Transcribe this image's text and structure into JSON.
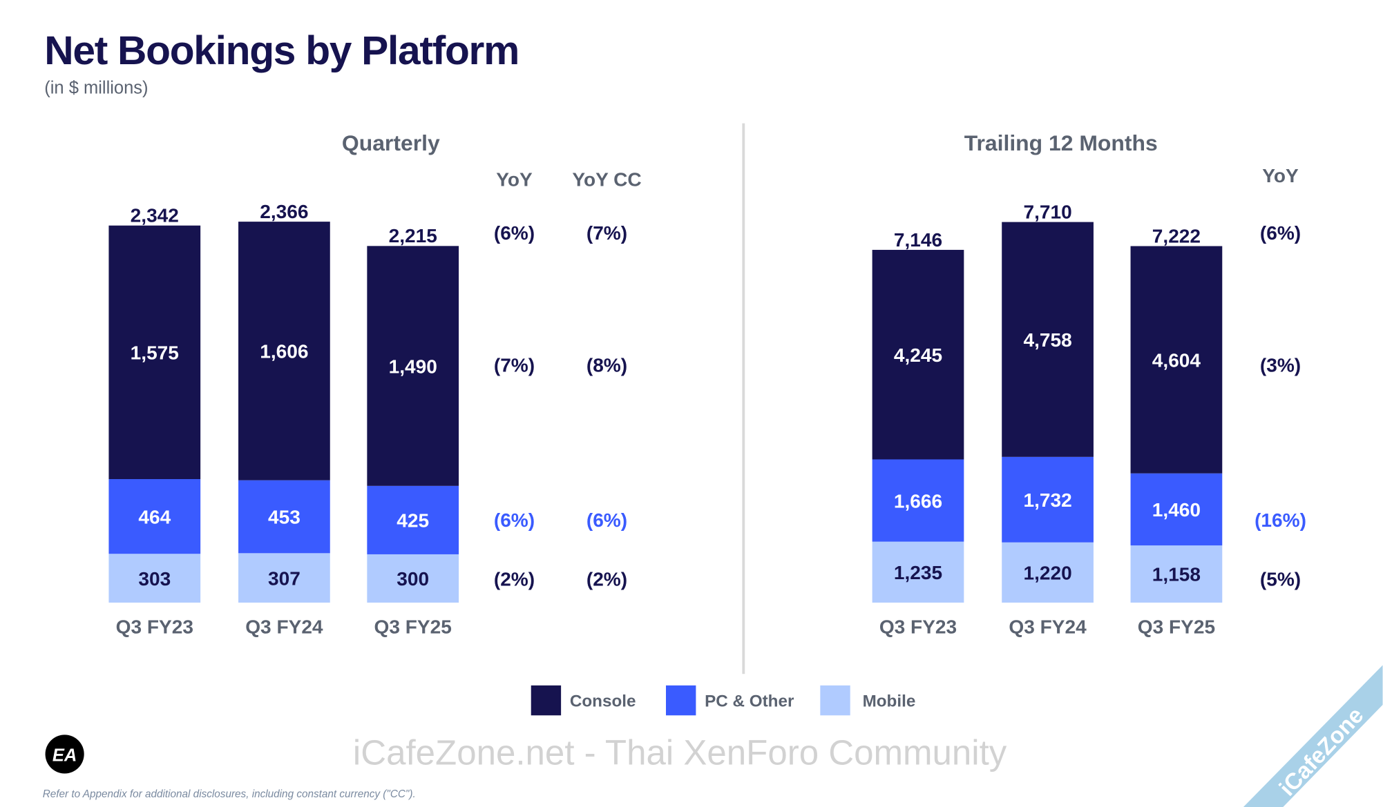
{
  "title": "Net Bookings by Platform",
  "subtitle": "(in $ millions)",
  "colors": {
    "Console": "#16134f",
    "PC & Other": "#3a5bff",
    "Mobile": "#b0cbff",
    "text": "#16134f",
    "muted": "#5a6270"
  },
  "legend": [
    "Console",
    "PC & Other",
    "Mobile"
  ],
  "footnote": "Refer to Appendix for additional disclosures, including constant currency (\"CC\").",
  "logo": "EA",
  "watermark": "iCafeZone.net - Thai XenForo Community",
  "corner_watermark": "iCafeZone",
  "chart_data": [
    {
      "type": "bar",
      "stacked": true,
      "title": "Quarterly",
      "categories": [
        "Q3 FY23",
        "Q3 FY24",
        "Q3 FY25"
      ],
      "series": [
        {
          "name": "Console",
          "values": [
            1575,
            1606,
            1490
          ]
        },
        {
          "name": "PC & Other",
          "values": [
            464,
            453,
            425
          ]
        },
        {
          "name": "Mobile",
          "values": [
            303,
            307,
            300
          ]
        }
      ],
      "totals": [
        "2,342",
        "2,366",
        "2,215"
      ],
      "labels": {
        "Console": [
          "1,575",
          "1,606",
          "1,490"
        ],
        "PC & Other": [
          "464",
          "453",
          "425"
        ],
        "Mobile": [
          "303",
          "307",
          "300"
        ]
      },
      "change_columns": [
        {
          "header": "YoY",
          "total": "(6%)",
          "Console": "(7%)",
          "PC & Other": "(6%)",
          "Mobile": "(2%)"
        },
        {
          "header": "YoY CC",
          "total": "(7%)",
          "Console": "(8%)",
          "PC & Other": "(6%)",
          "Mobile": "(2%)"
        }
      ],
      "ylim": [
        0,
        2400
      ],
      "grid": false,
      "legend": "bottom"
    },
    {
      "type": "bar",
      "stacked": true,
      "title": "Trailing 12 Months",
      "categories": [
        "Q3 FY23",
        "Q3 FY24",
        "Q3 FY25"
      ],
      "series": [
        {
          "name": "Console",
          "values": [
            4245,
            4758,
            4604
          ]
        },
        {
          "name": "PC & Other",
          "values": [
            1666,
            1732,
            1460
          ]
        },
        {
          "name": "Mobile",
          "values": [
            1235,
            1220,
            1158
          ]
        }
      ],
      "totals": [
        "7,146",
        "7,710",
        "7,222"
      ],
      "labels": {
        "Console": [
          "4,245",
          "4,758",
          "4,604"
        ],
        "PC & Other": [
          "1,666",
          "1,732",
          "1,460"
        ],
        "Mobile": [
          "1,235",
          "1,220",
          "1,158"
        ]
      },
      "change_columns": [
        {
          "header": "YoY",
          "total": "(6%)",
          "Console": "(3%)",
          "PC & Other": "(16%)",
          "Mobile": "(5%)"
        }
      ],
      "ylim": [
        0,
        7800
      ],
      "grid": false,
      "legend": "bottom"
    }
  ]
}
